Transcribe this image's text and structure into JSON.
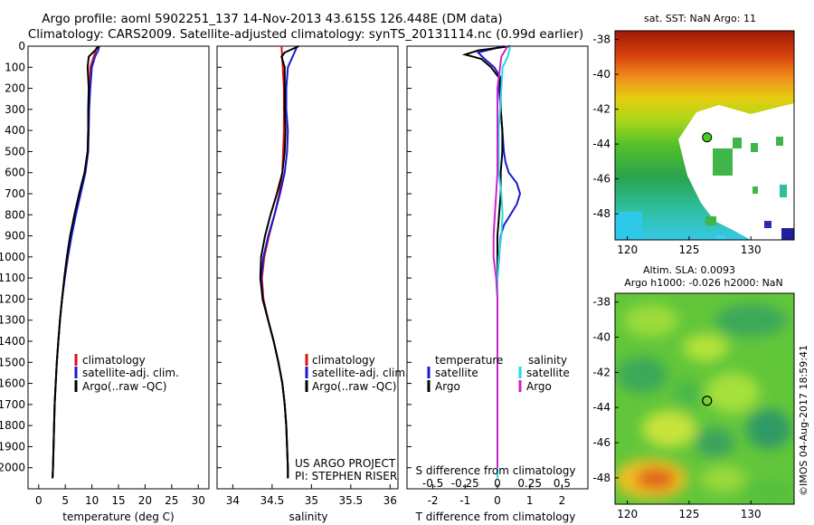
{
  "title": {
    "line1": "Argo profile: aoml 5902251_137 14-Nov-2013 43.615S 126.448E (DM data)",
    "line2": "Climatology: CARS2009. Satellite-adjusted climatology: synTS_20131114.nc (0.99d earlier)"
  },
  "colors": {
    "climatology": "#dd1111",
    "satellite": "#1a1acc",
    "argo": "#000000",
    "sal_satellite": "#22dddd",
    "sal_argo": "#cc22cc"
  },
  "chart_data": [
    {
      "id": "temperature",
      "type": "line",
      "xlabel": "temperature (deg C)",
      "ylabel": "",
      "xlim": [
        -2,
        32
      ],
      "ylim": [
        2100,
        0
      ],
      "xticks": [
        "0",
        "5",
        "10",
        "15",
        "20",
        "25",
        "30"
      ],
      "yticks": [
        "0",
        "100",
        "200",
        "300",
        "400",
        "500",
        "600",
        "700",
        "800",
        "900",
        "1000",
        "1100",
        "1200",
        "1300",
        "1400",
        "1500",
        "1600",
        "1700",
        "1800",
        "1900",
        "2000"
      ],
      "legend": [
        "climatology",
        "satellite-adj. clim.",
        "Argo(..raw -QC)"
      ],
      "series": [
        {
          "name": "climatology",
          "depth": [
            0,
            100,
            200,
            300,
            400,
            500,
            600,
            700,
            800,
            900,
            1000,
            1100,
            1200,
            1300,
            1400,
            1500,
            1600,
            1700,
            1800,
            1900,
            2000,
            2050
          ],
          "values": [
            11.0,
            9.7,
            9.6,
            9.4,
            9.3,
            9.2,
            8.7,
            7.8,
            6.9,
            6.1,
            5.5,
            4.9,
            4.4,
            4.0,
            3.7,
            3.4,
            3.2,
            3.0,
            2.9,
            2.8,
            2.7,
            2.6
          ]
        },
        {
          "name": "satellite-adj. clim.",
          "depth": [
            0,
            20,
            50,
            100,
            200,
            300,
            400,
            500,
            600,
            700,
            800,
            900,
            1000,
            1100,
            1200,
            1300,
            1400,
            1500,
            1600,
            1700,
            1800,
            1900,
            2000,
            2050
          ],
          "values": [
            11.4,
            11.2,
            10.6,
            10.0,
            9.7,
            9.5,
            9.4,
            9.3,
            8.8,
            7.9,
            7.0,
            6.2,
            5.5,
            4.9,
            4.4,
            4.0,
            3.7,
            3.4,
            3.2,
            3.0,
            2.9,
            2.8,
            2.7,
            2.6
          ]
        },
        {
          "name": "Argo(..raw -QC)",
          "depth": [
            0,
            20,
            50,
            100,
            200,
            300,
            400,
            500,
            600,
            700,
            800,
            900,
            1000,
            1100,
            1200,
            1300,
            1400,
            1500,
            1600,
            1700,
            1800,
            1900,
            2000,
            2050
          ],
          "values": [
            11.3,
            10.6,
            9.4,
            9.2,
            9.4,
            9.3,
            9.3,
            9.2,
            8.6,
            7.6,
            6.7,
            5.9,
            5.3,
            4.8,
            4.4,
            4.0,
            3.7,
            3.4,
            3.2,
            3.0,
            2.9,
            2.8,
            2.7,
            2.6
          ]
        }
      ]
    },
    {
      "id": "salinity",
      "type": "line",
      "xlabel": "salinity",
      "ylabel": "",
      "xlim": [
        33.8,
        36.1
      ],
      "ylim": [
        2100,
        0
      ],
      "xticks": [
        "34",
        "34.5",
        "35",
        "35.5",
        "36"
      ],
      "legend": [
        "climatology",
        "satellite-adj. clim.",
        "Argo(..raw -QC)"
      ],
      "series": [
        {
          "name": "climatology",
          "depth": [
            0,
            200,
            400,
            600,
            700,
            800,
            900,
            1000,
            1100,
            1200,
            1300,
            1400,
            1500,
            1600,
            1700,
            1800,
            1900,
            2000,
            2050
          ],
          "values": [
            34.62,
            34.65,
            34.65,
            34.63,
            34.59,
            34.53,
            34.46,
            34.4,
            34.37,
            34.39,
            34.45,
            34.52,
            34.58,
            34.63,
            34.66,
            34.68,
            34.69,
            34.7,
            34.7
          ]
        },
        {
          "name": "satellite-adj. clim.",
          "depth": [
            0,
            50,
            100,
            200,
            300,
            400,
            500,
            600,
            700,
            800,
            900,
            1000,
            1100,
            1200,
            1300,
            1400,
            1500,
            1600,
            1700,
            1800,
            1900,
            2000,
            2050
          ],
          "values": [
            34.82,
            34.76,
            34.7,
            34.68,
            34.68,
            34.7,
            34.69,
            34.66,
            34.6,
            34.53,
            34.45,
            34.39,
            34.36,
            34.38,
            34.45,
            34.52,
            34.58,
            34.63,
            34.66,
            34.68,
            34.69,
            34.7,
            34.7
          ]
        },
        {
          "name": "Argo(..raw -QC)",
          "depth": [
            0,
            30,
            50,
            100,
            200,
            300,
            400,
            500,
            600,
            700,
            800,
            900,
            1000,
            1100,
            1200,
            1300,
            1400,
            1500,
            1600,
            1700,
            1800,
            1900,
            2000,
            2050
          ],
          "values": [
            34.84,
            34.66,
            34.62,
            34.66,
            34.66,
            34.66,
            34.67,
            34.66,
            34.63,
            34.56,
            34.48,
            34.41,
            34.36,
            34.35,
            34.38,
            34.45,
            34.52,
            34.58,
            34.63,
            34.66,
            34.68,
            34.69,
            34.7,
            34.7
          ]
        }
      ],
      "annotation": {
        "line1": "US ARGO PROJECT",
        "line2": "PI: STEPHEN RISER"
      }
    },
    {
      "id": "differences",
      "type": "line",
      "xlabel": "T difference from climatology",
      "xlabel_top": "S difference from climatology",
      "xlim": [
        -2.8,
        2.8
      ],
      "ylim": [
        2100,
        0
      ],
      "xticks": [
        "-2",
        "-1",
        "0",
        "1",
        "2"
      ],
      "xticks_top": [
        "-0.5",
        "-0.25",
        "0",
        "0.25",
        "0.5"
      ],
      "legend_temperature": {
        "title": "temperature",
        "items": [
          "satellite",
          "Argo"
        ]
      },
      "legend_salinity": {
        "title": "salinity",
        "items": [
          "satellite",
          "Argo"
        ]
      },
      "series": [
        {
          "name": "temperature satellite",
          "depth": [
            0,
            30,
            60,
            100,
            150,
            200,
            300,
            400,
            500,
            550,
            600,
            650,
            700,
            750,
            800,
            850,
            900,
            1000,
            1100,
            1200,
            1500,
            2000,
            2050
          ],
          "values": [
            0.2,
            -0.6,
            -0.4,
            -0.1,
            0.1,
            0.05,
            0.1,
            0.15,
            0.2,
            0.25,
            0.35,
            0.6,
            0.7,
            0.6,
            0.4,
            0.2,
            0.1,
            0.05,
            0.0,
            0.0,
            0.0,
            0.0,
            0.0
          ]
        },
        {
          "name": "temperature Argo",
          "depth": [
            0,
            20,
            40,
            60,
            100,
            150,
            200,
            300,
            400,
            500,
            600,
            700,
            800,
            900,
            1000,
            1100,
            1200,
            1500,
            2000
          ],
          "values": [
            0.4,
            -0.6,
            -1.0,
            -0.5,
            -0.2,
            0.05,
            0.1,
            0.1,
            0.15,
            0.15,
            0.1,
            0.1,
            0.05,
            0.0,
            0.0,
            0.0,
            0.0,
            0.0,
            0.0
          ]
        },
        {
          "name": "salinity satellite",
          "depth": [
            0,
            50,
            100,
            200,
            300,
            400,
            500,
            600,
            700,
            800,
            900,
            1000,
            1100,
            1200,
            1500,
            2000,
            2050
          ],
          "values": [
            0.1,
            0.08,
            0.04,
            0.03,
            0.02,
            0.01,
            0.01,
            0.01,
            0.03,
            0.04,
            0.03,
            0.01,
            0.0,
            0.0,
            0.0,
            0.0,
            0.0
          ]
        },
        {
          "name": "salinity Argo",
          "depth": [
            0,
            50,
            100,
            150,
            200,
            300,
            400,
            500,
            600,
            700,
            800,
            900,
            1000,
            1100,
            1200,
            1500,
            2000
          ],
          "values": [
            0.08,
            0.03,
            0.02,
            0.01,
            0.0,
            0.0,
            0.0,
            0.0,
            0.0,
            -0.01,
            -0.02,
            -0.03,
            -0.03,
            -0.01,
            0.0,
            0.0,
            0.0
          ]
        }
      ]
    },
    {
      "id": "sst_map",
      "type": "heatmap",
      "title": "sat. SST: NaN Argo: 11",
      "xlim": [
        119,
        133.5
      ],
      "ylim": [
        -49.5,
        -37.5
      ],
      "xticks": [
        "120",
        "125",
        "130"
      ],
      "yticks": [
        "-38",
        "-40",
        "-42",
        "-44",
        "-46",
        "-48"
      ],
      "float_position": {
        "lon": 126.448,
        "lat": -43.615
      }
    },
    {
      "id": "sla_map",
      "type": "heatmap",
      "title_line1": "Altim. SLA: 0.0093",
      "title_line2": "Argo h1000: -0.026 h2000: NaN",
      "xlim": [
        119,
        133.5
      ],
      "ylim": [
        -49.5,
        -37.5
      ],
      "xticks": [
        "120",
        "125",
        "130"
      ],
      "yticks": [
        "-38",
        "-40",
        "-42",
        "-44",
        "-46",
        "-48"
      ],
      "float_position": {
        "lon": 126.448,
        "lat": -43.615
      }
    }
  ],
  "credit": "©IMOS 04-Aug-2017 18:59:41"
}
